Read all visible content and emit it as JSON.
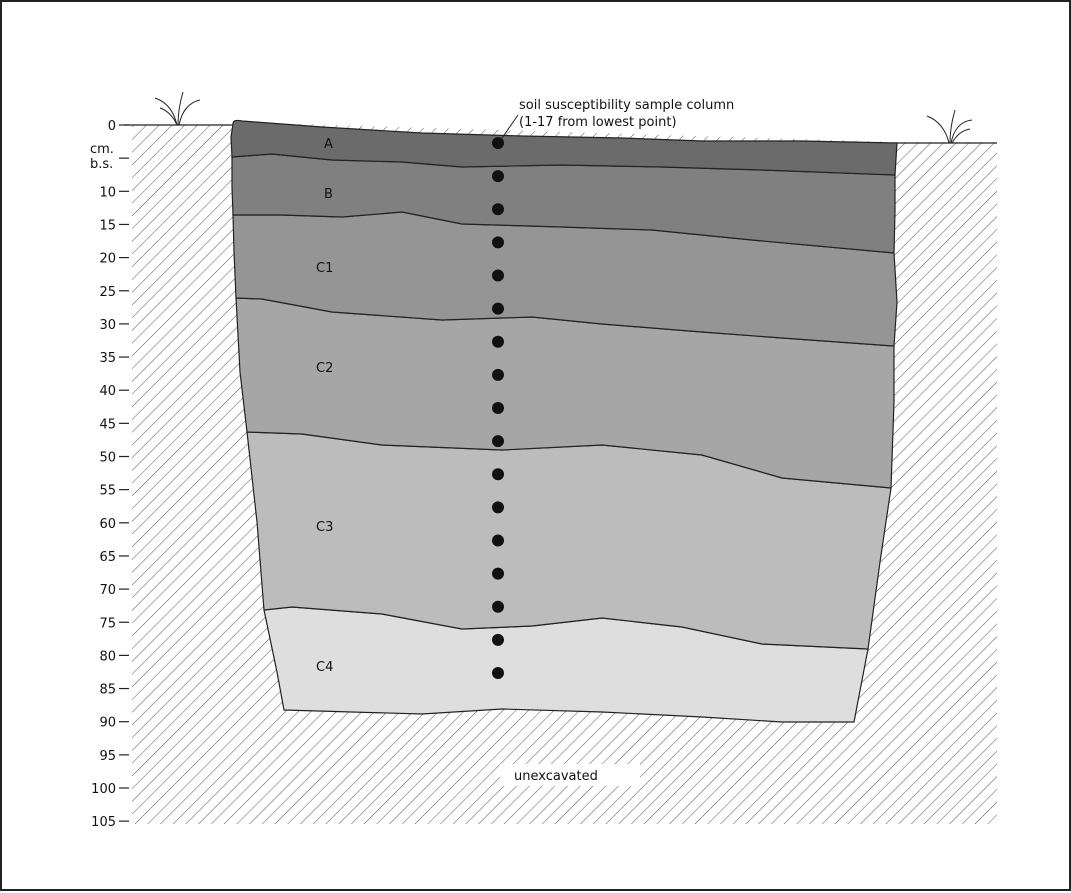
{
  "depth_scale": {
    "unit_line1": "cm.",
    "unit_line2": "b.s.",
    "ticks": [
      "0",
      "5",
      "10",
      "15",
      "20",
      "25",
      "30",
      "35",
      "40",
      "45",
      "50",
      "55",
      "60",
      "65",
      "70",
      "75",
      "80",
      "85",
      "90",
      "95",
      "100",
      "105"
    ],
    "hidden_label_ticks": [
      "5"
    ]
  },
  "annotation": {
    "line1": "soil susceptibility sample column",
    "line2": "(1-17 from lowest point)"
  },
  "layers": [
    {
      "label": "A",
      "color": "#6b6b6b"
    },
    {
      "label": "B",
      "color": "#808080"
    },
    {
      "label": "C1",
      "color": "#959595"
    },
    {
      "label": "C2",
      "color": "#a6a6a6"
    },
    {
      "label": "C3",
      "color": "#bcbcbc"
    },
    {
      "label": "C4",
      "color": "#dedede"
    }
  ],
  "sample_count": 17,
  "unexcavated_label": "unexcavated"
}
